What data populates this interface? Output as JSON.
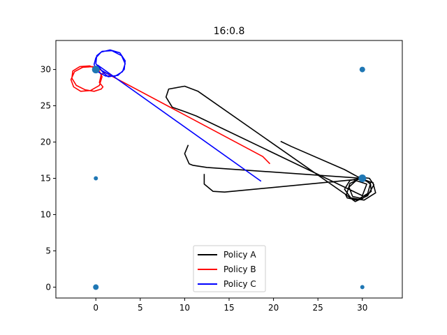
{
  "chart_data": {
    "type": "line",
    "title": "16:0.8",
    "xlabel": "",
    "ylabel": "",
    "xlim": [
      -4.5,
      34.5
    ],
    "ylim": [
      -1.5,
      34.0
    ],
    "xticks": [
      0,
      5,
      10,
      15,
      20,
      25,
      30
    ],
    "yticks": [
      0,
      5,
      10,
      15,
      20,
      25,
      30
    ],
    "grid": false,
    "legend_position": "bottom-center",
    "points": [
      {
        "x": 0,
        "y": 30,
        "size": 10
      },
      {
        "x": 30,
        "y": 30,
        "size": 7
      },
      {
        "x": 30,
        "y": 15,
        "size": 10
      },
      {
        "x": 0,
        "y": 15,
        "size": 5
      },
      {
        "x": 0,
        "y": 0,
        "size": 7
      },
      {
        "x": 30,
        "y": 0,
        "size": 5
      }
    ],
    "point_color": "#1f77b4",
    "series": [
      {
        "name": "Policy A",
        "color": "#000000",
        "x": [
          20.8,
          22,
          28,
          29.5,
          30.8,
          31.3,
          30.6,
          29.2,
          28.2,
          28.6,
          29.8,
          30.9,
          31.0,
          30.0,
          28.9,
          28.5,
          29.5,
          31.2,
          31.5,
          30.2,
          28.7,
          28.0,
          28.6,
          30.0,
          30.9,
          30.6,
          29.4,
          28.3,
          28.1,
          11.5,
          10,
          8.2,
          7.9,
          8.6,
          10.0,
          11.3,
          30.0,
          30.5,
          29.0,
          14.5,
          13.2,
          12.2,
          12.2
        ],
        "y": [
          20.1,
          19.4,
          16.2,
          15.2,
          15.0,
          14.1,
          12.6,
          11.8,
          12.7,
          14.3,
          15.0,
          14.5,
          13.2,
          12.2,
          12.5,
          13.8,
          14.9,
          14.4,
          13.0,
          12.0,
          12.3,
          13.5,
          14.7,
          15.1,
          14.2,
          12.9,
          12.0,
          12.3,
          12.8,
          27.0,
          27.7,
          27.3,
          26.2,
          24.8,
          24.2,
          23.6,
          12.6,
          14.2,
          14.8,
          13.1,
          13.2,
          14.2,
          15.6
        ],
        "x2": [
          10.4,
          10.0,
          10.5,
          10.9,
          12.5,
          30.0,
          30.6
        ],
        "y2": [
          19.6,
          18.4,
          17.0,
          16.8,
          16.5,
          15.0,
          14.5
        ]
      },
      {
        "name": "Policy B",
        "color": "#ff0000",
        "x": [
          19.6,
          18.8,
          1.0,
          0.6,
          0.4,
          0.8,
          0.6,
          -0.2,
          -1.2,
          -2.2,
          -2.7,
          -2.6,
          -1.8,
          -0.7,
          0.3,
          0.7,
          0.4,
          -0.6,
          -1.7,
          -2.5,
          -2.8,
          -2.4,
          -1.5,
          -0.3,
          0.6,
          0.9
        ],
        "y": [
          17.0,
          18.0,
          29.6,
          29.3,
          28.2,
          27.6,
          27.3,
          27.0,
          27.2,
          27.8,
          28.8,
          29.8,
          30.4,
          30.5,
          30.0,
          29.0,
          27.8,
          27.1,
          27.0,
          27.6,
          28.6,
          29.7,
          30.3,
          30.4,
          29.9,
          29.5
        ],
        "x2": [],
        "y2": []
      },
      {
        "name": "Policy C",
        "color": "#0000ff",
        "x": [
          18.6,
          0.2,
          0.8,
          1.4,
          2.5,
          3.2,
          3.3,
          2.7,
          1.6,
          0.6,
          0.0,
          -0.2,
          0.2,
          1.1,
          2.2,
          3.0,
          3.3,
          2.9,
          1.8,
          0.7,
          0.1,
          0.0,
          0.6,
          1.5
        ],
        "y": [
          14.6,
          30.6,
          29.6,
          29.0,
          29.2,
          30.0,
          31.2,
          32.3,
          32.7,
          32.4,
          31.6,
          30.7,
          29.7,
          29.1,
          29.1,
          29.7,
          30.8,
          31.9,
          32.6,
          32.5,
          31.9,
          30.8,
          29.9,
          29.3
        ],
        "x2": [],
        "y2": []
      }
    ]
  }
}
